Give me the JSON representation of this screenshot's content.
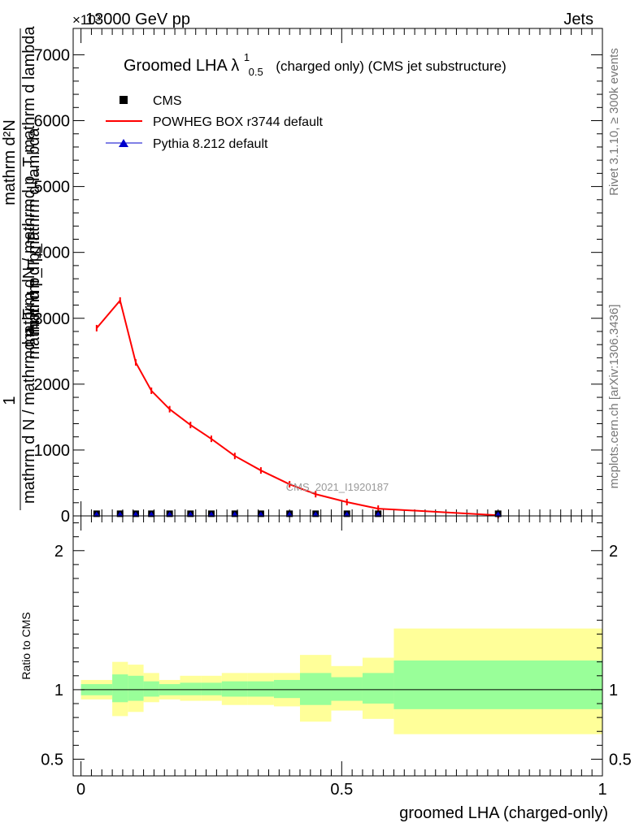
{
  "header": {
    "left_label": "13000 GeV pp",
    "right_label": "Jets",
    "exponent_label": "×10³"
  },
  "side_labels": {
    "top": "Rivet 3.1.10, ≥ 300k events",
    "bottom": "mcplots.cern.ch [arXiv:1306.3436]"
  },
  "watermark": "CMS_2021_I1920187",
  "colors": {
    "mc": "#ff0000",
    "data": "#000000",
    "pythia": "#0000cc",
    "band_inner": "#99ff99",
    "band_outer": "#ffff99"
  },
  "chart_data": [
    {
      "type": "line",
      "title": "Groomed LHA λ",
      "title_sup": "1",
      "title_sub": "0.5",
      "title_suffix": "(charged only) (CMS jet substructure)",
      "ylabel_numerator": "mathrm dN / mathrmd p_T mathrm d lambda",
      "ylabel_numerator_lines": [
        "mathrm d²N",
        "mathrm d p_T mathrm d lambda"
      ],
      "ylabel_fraction_one": "1",
      "ylabel_denominator": "mathrm d N / mathrmd p_T",
      "ylabel_overlap": "mathrm d p_T",
      "ylim": [
        0,
        7400
      ],
      "yticks": [
        0,
        1000,
        2000,
        3000,
        4000,
        5000,
        6000,
        7000
      ],
      "yticklabels": [
        "0",
        "1000",
        "2000",
        "3000",
        "4000",
        "5000",
        "6000",
        "7000"
      ],
      "xlim": [
        -0.015,
        1.0
      ],
      "legend": [
        {
          "label": "CMS",
          "marker": "square"
        },
        {
          "label": "POWHEG BOX r3744 default",
          "marker": "line"
        },
        {
          "label": "Pythia 8.212 default",
          "marker": "triangle"
        }
      ],
      "series": [
        {
          "name": "POWHEG BOX r3744 default",
          "x": [
            0.03,
            0.075,
            0.105,
            0.135,
            0.17,
            0.21,
            0.25,
            0.295,
            0.345,
            0.4,
            0.45,
            0.51,
            0.57,
            0.8
          ],
          "values": [
            2850,
            3270,
            2330,
            1900,
            1620,
            1380,
            1170,
            910,
            690,
            480,
            330,
            210,
            110,
            10
          ]
        },
        {
          "name": "CMS",
          "x": [
            0.03,
            0.075,
            0.105,
            0.135,
            0.17,
            0.21,
            0.25,
            0.295,
            0.345,
            0.4,
            0.45,
            0.51,
            0.57,
            0.8
          ],
          "values": [
            8,
            8,
            8,
            8,
            8,
            8,
            8,
            8,
            8,
            8,
            8,
            8,
            8,
            8
          ]
        },
        {
          "name": "Pythia 8.212 default",
          "x": [
            0.03,
            0.075,
            0.105,
            0.135,
            0.17,
            0.21,
            0.25,
            0.295,
            0.345,
            0.4,
            0.45,
            0.51,
            0.57,
            0.8
          ],
          "values": [
            4,
            4,
            4,
            4,
            4,
            4,
            4,
            4,
            4,
            4,
            4,
            4,
            4,
            4
          ]
        }
      ]
    },
    {
      "type": "area",
      "ylabel": "Ratio to CMS",
      "xlabel": "groomed LHA (charged-only)",
      "ylim": [
        0.38,
        2.25
      ],
      "yticks": [
        0.5,
        1,
        2
      ],
      "yticklabels": [
        "0.5",
        "1",
        "2"
      ],
      "xlim": [
        -0.015,
        1.0
      ],
      "xticks": [
        0,
        0.5,
        1
      ],
      "xticklabels": [
        "0",
        "0.5",
        "1"
      ],
      "reference_line": 1,
      "bins": [
        {
          "lo": 0.0,
          "hi": 0.06,
          "inner": [
            0.96,
            1.04
          ],
          "outer": [
            0.93,
            1.07
          ]
        },
        {
          "lo": 0.06,
          "hi": 0.09,
          "inner": [
            0.91,
            1.11
          ],
          "outer": [
            0.81,
            1.2
          ]
        },
        {
          "lo": 0.09,
          "hi": 0.12,
          "inner": [
            0.92,
            1.1
          ],
          "outer": [
            0.84,
            1.18
          ]
        },
        {
          "lo": 0.12,
          "hi": 0.15,
          "inner": [
            0.95,
            1.06
          ],
          "outer": [
            0.91,
            1.12
          ]
        },
        {
          "lo": 0.15,
          "hi": 0.19,
          "inner": [
            0.96,
            1.04
          ],
          "outer": [
            0.93,
            1.07
          ]
        },
        {
          "lo": 0.19,
          "hi": 0.23,
          "inner": [
            0.96,
            1.05
          ],
          "outer": [
            0.92,
            1.1
          ]
        },
        {
          "lo": 0.23,
          "hi": 0.27,
          "inner": [
            0.96,
            1.05
          ],
          "outer": [
            0.92,
            1.1
          ]
        },
        {
          "lo": 0.27,
          "hi": 0.32,
          "inner": [
            0.95,
            1.06
          ],
          "outer": [
            0.89,
            1.12
          ]
        },
        {
          "lo": 0.32,
          "hi": 0.37,
          "inner": [
            0.95,
            1.06
          ],
          "outer": [
            0.89,
            1.12
          ]
        },
        {
          "lo": 0.37,
          "hi": 0.42,
          "inner": [
            0.94,
            1.07
          ],
          "outer": [
            0.88,
            1.12
          ]
        },
        {
          "lo": 0.42,
          "hi": 0.48,
          "inner": [
            0.89,
            1.12
          ],
          "outer": [
            0.77,
            1.25
          ]
        },
        {
          "lo": 0.48,
          "hi": 0.54,
          "inner": [
            0.92,
            1.09
          ],
          "outer": [
            0.85,
            1.17
          ]
        },
        {
          "lo": 0.54,
          "hi": 0.6,
          "inner": [
            0.9,
            1.12
          ],
          "outer": [
            0.79,
            1.23
          ]
        },
        {
          "lo": 0.6,
          "hi": 1.0,
          "inner": [
            0.86,
            1.21
          ],
          "outer": [
            0.68,
            1.44
          ]
        }
      ]
    }
  ]
}
